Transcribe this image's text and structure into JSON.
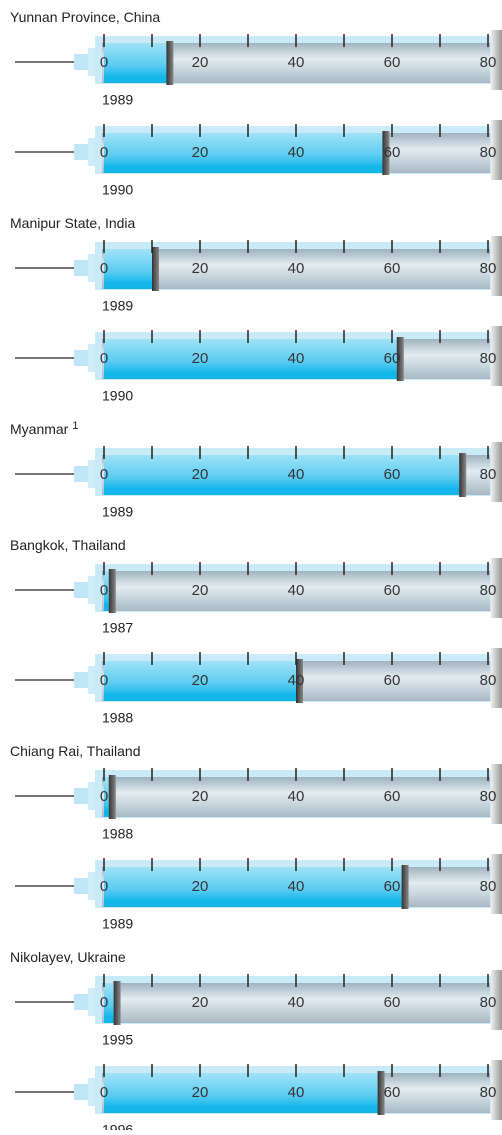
{
  "chart_data": {
    "type": "syringe-bar",
    "groups": [
      {
        "name": "Yunnan Province, China",
        "categories": [
          "1989",
          "1990"
        ],
        "values": [
          13,
          58
        ]
      },
      {
        "name": "Manipur State, India",
        "categories": [
          "1989",
          "1990"
        ],
        "values": [
          10,
          61
        ]
      },
      {
        "name": "Myanmar",
        "note": "1",
        "categories": [
          "1989"
        ],
        "values": [
          74
        ]
      },
      {
        "name": "Bangkok, Thailand",
        "categories": [
          "1987",
          "1988"
        ],
        "values": [
          1,
          40
        ]
      },
      {
        "name": "Chiang Rai, Thailand",
        "categories": [
          "1988",
          "1989"
        ],
        "values": [
          1,
          62
        ]
      },
      {
        "name": "Nikolayev, Ukraine",
        "categories": [
          "1995",
          "1996"
        ],
        "values": [
          2,
          57
        ]
      }
    ],
    "xlim": [
      0,
      80
    ],
    "xticks": [
      0,
      20,
      40,
      60,
      80
    ],
    "xminorticks": [
      10,
      30,
      50,
      70
    ],
    "color": "#14b6ea"
  }
}
